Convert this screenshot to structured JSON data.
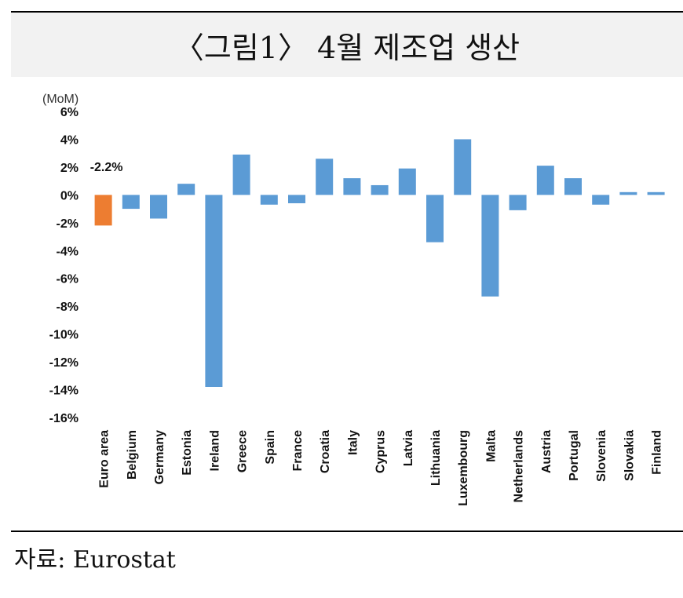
{
  "title": "〈그림1〉 4월 제조업 생산",
  "source": "자료: Eurostat",
  "chart_data": {
    "type": "bar",
    "unit_label": "(MoM)",
    "categories": [
      "Euro area",
      "Belgium",
      "Germany",
      "Estonia",
      "Ireland",
      "Greece",
      "Spain",
      "France",
      "Croatia",
      "Italy",
      "Cyprus",
      "Latvia",
      "Lithuania",
      "Luxembourg",
      "Malta",
      "Netherlands",
      "Austria",
      "Portugal",
      "Slovenia",
      "Slovakia",
      "Finland"
    ],
    "values": [
      -2.2,
      -1.0,
      -1.7,
      0.8,
      -13.8,
      2.9,
      -0.7,
      -0.6,
      2.6,
      1.2,
      0.7,
      1.9,
      -3.4,
      4.0,
      -7.3,
      -1.1,
      2.1,
      1.2,
      -0.7,
      0.2,
      0.2
    ],
    "ylim": [
      -16,
      6
    ],
    "yticks": [
      6,
      4,
      2,
      0,
      -2,
      -4,
      -6,
      -8,
      -10,
      -12,
      -14,
      -16
    ],
    "ytick_labels": [
      "6%",
      "4%",
      "2%",
      "0%",
      "-2%",
      "-4%",
      "-6%",
      "-8%",
      "-10%",
      "-12%",
      "-14%",
      "-16%"
    ],
    "annotation": {
      "category": "Euro area",
      "text": "-2.2%"
    },
    "colors": {
      "highlight": "#ed7d31",
      "default": "#5b9bd5"
    },
    "grid": false,
    "legend": "none"
  }
}
